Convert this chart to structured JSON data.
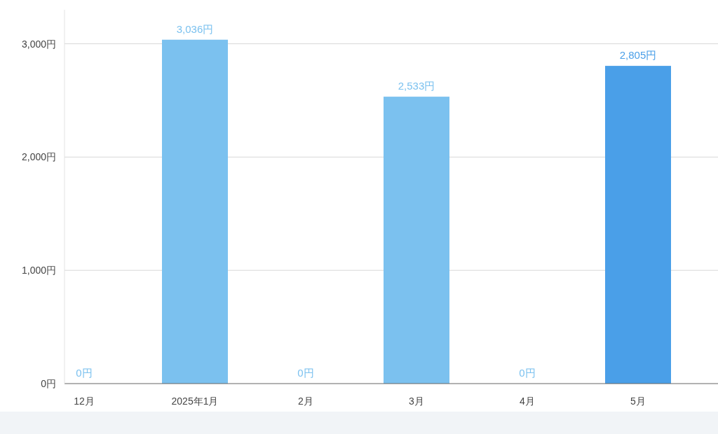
{
  "chart_data": {
    "type": "bar",
    "categories": [
      "12月",
      "2025年1月",
      "2月",
      "3月",
      "4月",
      "5月"
    ],
    "values": [
      0,
      3036,
      0,
      2533,
      0,
      2805
    ],
    "colors": [
      "#7bc1ef",
      "#7bc1ef",
      "#7bc1ef",
      "#7bc1ef",
      "#7bc1ef",
      "#4a9fe8"
    ],
    "value_labels": [
      "0円",
      "3,036円",
      "0円",
      "2,533円",
      "0円",
      "2,805円"
    ],
    "ylim": [
      0,
      3300
    ],
    "yticks": [
      {
        "value": 0,
        "label": "0円"
      },
      {
        "value": 1000,
        "label": "1,000円"
      },
      {
        "value": 2000,
        "label": "2,000円"
      },
      {
        "value": 3000,
        "label": "3,000円"
      }
    ],
    "grid": "y"
  }
}
